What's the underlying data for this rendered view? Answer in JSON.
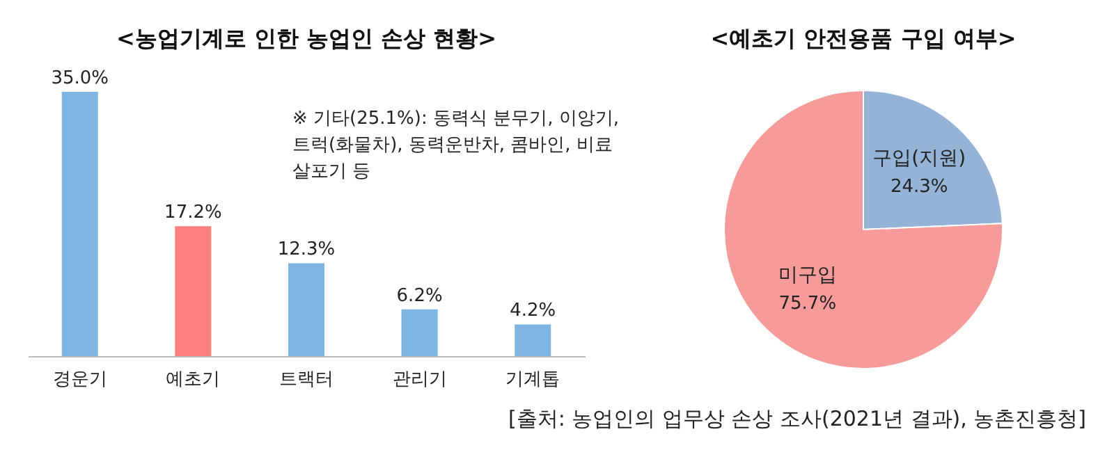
{
  "chart_data": [
    {
      "type": "bar",
      "title": "<농업기계로 인한 농업인 손상 현황>",
      "categories": [
        "경운기",
        "예초기",
        "트랙터",
        "관리기",
        "기계톱"
      ],
      "values": [
        35.0,
        17.2,
        12.3,
        6.2,
        4.2
      ],
      "colors": [
        "#7fb5e2",
        "#ff7f7f",
        "#7fb5e2",
        "#7fb5e2",
        "#7fb5e2"
      ],
      "value_labels": [
        "35.0%",
        "17.2%",
        "12.3%",
        "6.2%",
        "4.2%"
      ],
      "annotations": [
        "※ 기타(25.1%): 동력식 분무기, 이앙기, 트럭(화물차), 동력운반차, 콤바인, 비료살포기 등"
      ]
    },
    {
      "type": "pie",
      "title": "<예초기 안전용품 구입 여부>",
      "categories": [
        "구입(지원)",
        "미구입"
      ],
      "values": [
        24.3,
        75.7
      ],
      "colors": [
        "#95b3d7",
        "#f79a9a"
      ],
      "value_labels": [
        "24.3%",
        "75.7%"
      ],
      "annotations": [
        "[출처: 농업인의 업무상 손상 조사(2021년 결과), 농촌진흥청]"
      ]
    }
  ]
}
